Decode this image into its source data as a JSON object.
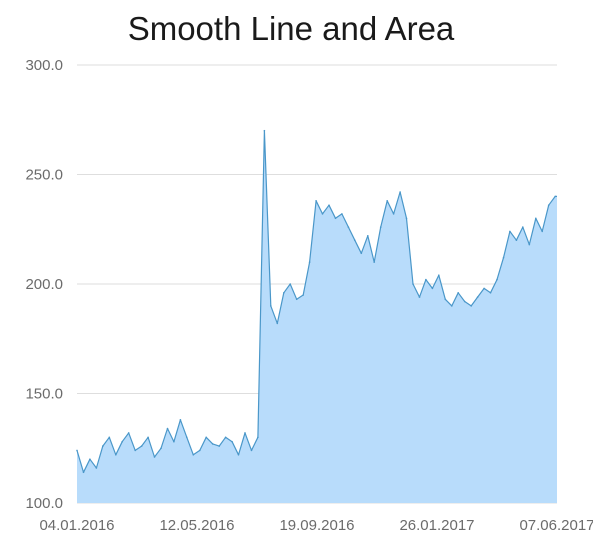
{
  "chart_data": {
    "type": "area",
    "title": "Smooth Line and Area",
    "xlabel": "",
    "ylabel": "",
    "ylim": [
      100,
      300
    ],
    "y_ticks": [
      "100.0",
      "150.0",
      "200.0",
      "250.0",
      "300.0"
    ],
    "x_ticks": [
      "04.01.2016",
      "12.05.2016",
      "19.09.2016",
      "26.01.2017",
      "07.06.2017"
    ],
    "x_range": [
      "2016-01-04",
      "2017-06-07"
    ],
    "grid": true,
    "legend": "none",
    "colors": {
      "line": "#4a97c9",
      "fill": "#b8dcfb"
    },
    "series": [
      {
        "x": [
          "2016-01-04",
          "2016-01-11",
          "2016-01-18",
          "2016-01-25",
          "2016-02-01",
          "2016-02-08",
          "2016-02-15",
          "2016-02-22",
          "2016-02-29",
          "2016-03-07",
          "2016-03-14",
          "2016-03-21",
          "2016-03-28",
          "2016-04-04",
          "2016-04-11",
          "2016-04-18",
          "2016-04-25",
          "2016-05-02",
          "2016-05-09",
          "2016-05-16",
          "2016-05-23",
          "2016-05-30",
          "2016-06-06",
          "2016-06-13",
          "2016-06-20",
          "2016-06-27",
          "2016-07-04",
          "2016-07-11",
          "2016-07-18",
          "2016-07-25",
          "2016-08-01",
          "2016-08-08",
          "2016-08-15",
          "2016-08-22",
          "2016-08-29",
          "2016-09-05",
          "2016-09-12",
          "2016-09-19",
          "2016-09-26",
          "2016-10-03",
          "2016-10-10",
          "2016-10-17",
          "2016-10-24",
          "2016-10-31",
          "2016-11-07",
          "2016-11-14",
          "2016-11-21",
          "2016-11-28",
          "2016-12-05",
          "2016-12-12",
          "2016-12-19",
          "2016-12-26",
          "2017-01-02",
          "2017-01-09",
          "2017-01-16",
          "2017-01-23",
          "2017-01-30",
          "2017-02-06",
          "2017-02-13",
          "2017-02-20",
          "2017-02-27",
          "2017-03-06",
          "2017-03-13",
          "2017-03-20",
          "2017-03-27",
          "2017-04-03",
          "2017-04-10",
          "2017-04-17",
          "2017-04-24",
          "2017-05-01",
          "2017-05-08",
          "2017-05-15",
          "2017-05-22",
          "2017-05-29",
          "2017-06-05"
        ],
        "values": [
          124,
          114,
          120,
          116,
          126,
          130,
          122,
          128,
          132,
          124,
          126,
          130,
          121,
          125,
          134,
          128,
          138,
          130,
          122,
          124,
          130,
          127,
          126,
          130,
          128,
          122,
          132,
          124,
          130,
          270,
          190,
          182,
          196,
          200,
          193,
          195,
          210,
          238,
          232,
          236,
          230,
          232,
          226,
          220,
          214,
          222,
          210,
          226,
          238,
          232,
          242,
          230,
          200,
          194,
          202,
          198,
          204,
          193,
          190,
          196,
          192,
          190,
          194,
          198,
          196,
          202,
          212,
          224,
          220,
          226,
          218,
          230,
          224,
          236,
          240
        ]
      }
    ]
  }
}
